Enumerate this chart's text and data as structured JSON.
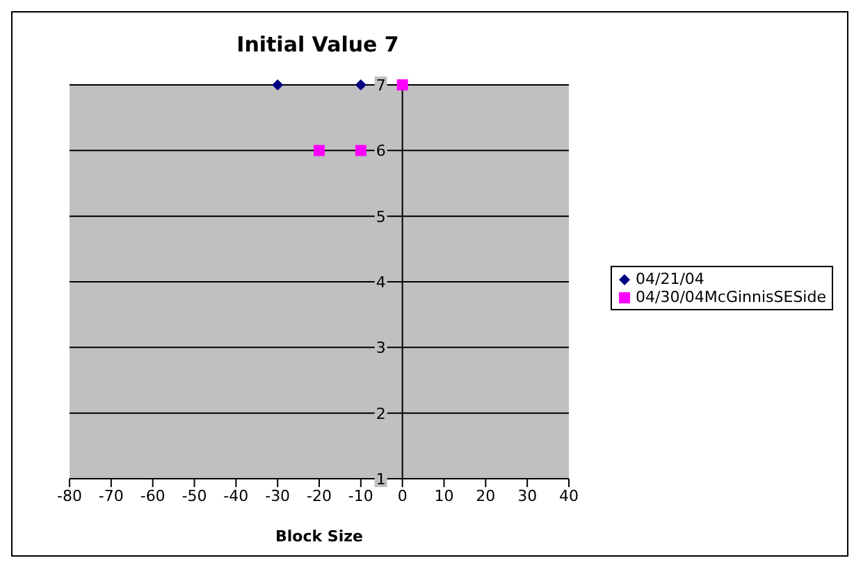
{
  "chart_data": {
    "type": "scatter",
    "title": "Initial Value 7",
    "xlabel": "Block Size",
    "series": [
      {
        "name": "04/21/04",
        "color": "#000080",
        "marker": "diamond",
        "x": [
          -30,
          -10
        ],
        "values": [
          7,
          7
        ]
      },
      {
        "name": "04/30/04McGinnisSESide",
        "color": "#ff00ff",
        "marker": "square",
        "x": [
          -20,
          -10,
          0
        ],
        "values": [
          6,
          6,
          7
        ]
      }
    ],
    "xlim": [
      -80,
      40
    ],
    "xticks": [
      -80,
      -70,
      -60,
      -50,
      -40,
      -30,
      -20,
      -10,
      0,
      10,
      20,
      30,
      40
    ],
    "ylim": [
      1,
      7
    ],
    "yticks": [
      1,
      2,
      3,
      4,
      5,
      6,
      7
    ],
    "grid": "y",
    "legend": "right"
  }
}
